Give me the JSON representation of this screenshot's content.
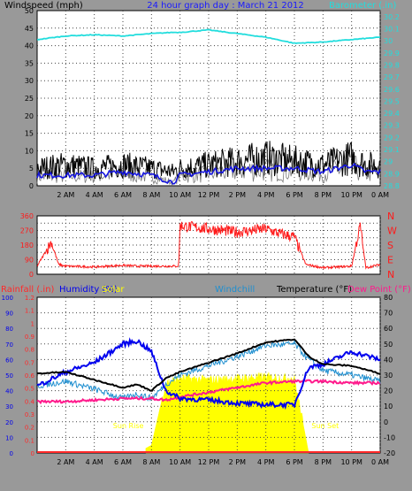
{
  "header": {
    "left_title": "Windspeed (mph)",
    "center_title": "24 hour graph day : March 21 2012",
    "right_title": "Barometer (.in)"
  },
  "colors": {
    "background": "#999999",
    "plot": "#ffffff",
    "grid": "#444444",
    "wind": "#000000",
    "gust_lite": "#7a7a7a",
    "wind_avg": "#1515e0",
    "barometer": "#22dddd",
    "direction": "#ff1a1a",
    "rainfall": "#ff2a2a",
    "humidity": "#0000ee",
    "solar": "#ffff00",
    "windchill": "#1f8fd0",
    "temperature": "#000000",
    "dewpoint": "#ff1a8c"
  },
  "x_ticks": [
    "2 AM",
    "4 AM",
    "6 AM",
    "8 AM",
    "10 AM",
    "12 PM",
    "2 PM",
    "4 PM",
    "6 PM",
    "8 PM",
    "10 PM",
    "0 AM"
  ],
  "chart_data": [
    {
      "type": "line",
      "title": "24 hour graph day : March 21 2012",
      "ylabel": "Windspeed (mph)",
      "y2label": "Barometer (.in)",
      "ylim": [
        0,
        50
      ],
      "y_ticks": [
        "0",
        "5",
        "10",
        "15",
        "20",
        "25",
        "30",
        "35",
        "40",
        "45",
        "50"
      ],
      "y2lim": [
        28.8,
        30.25
      ],
      "y2_ticks": [
        "28.8",
        "28.9",
        "29",
        "29.1",
        "29.2",
        "29.3",
        "29.4",
        "29.5",
        "29.6",
        "29.7",
        "29.8",
        "29.9",
        "30",
        "30.1",
        "30.2"
      ],
      "x_hours": [
        0,
        2,
        4,
        6,
        8,
        9.5,
        10,
        12,
        14,
        16,
        18,
        20,
        21,
        22,
        23,
        24
      ],
      "series": [
        {
          "name": "Windspeed",
          "axis": "left",
          "values": [
            5,
            6,
            5,
            6,
            5,
            4,
            5,
            6,
            7,
            8,
            7,
            6,
            7,
            8,
            6,
            6
          ]
        },
        {
          "name": "Wind avg",
          "axis": "left",
          "values": [
            3,
            3,
            3,
            4,
            3,
            1,
            3,
            4,
            5,
            5,
            5,
            4,
            5,
            6,
            4,
            4
          ]
        },
        {
          "name": "Barometer",
          "axis": "right",
          "values": [
            30.01,
            30.04,
            30.05,
            30.04,
            30.06,
            30.07,
            30.07,
            30.09,
            30.06,
            30.03,
            29.98,
            29.99,
            30.0,
            30.01,
            30.02,
            30.03
          ]
        }
      ]
    },
    {
      "type": "line",
      "ylabel_right": [
        "N",
        "W",
        "S",
        "E",
        "N"
      ],
      "ylim": [
        0,
        360
      ],
      "y_ticks": [
        "0",
        "45",
        "90",
        "135",
        "180",
        "225",
        "270",
        "315",
        "360"
      ],
      "x_hours": [
        0,
        1,
        1.5,
        2,
        4,
        6,
        7,
        9.9,
        10,
        12,
        14,
        16,
        17,
        18,
        18.8,
        20,
        22,
        22.6,
        23,
        24
      ],
      "series": [
        {
          "name": "Wind direction",
          "values": [
            50,
            200,
            60,
            50,
            45,
            55,
            50,
            50,
            300,
            280,
            260,
            280,
            250,
            230,
            60,
            40,
            50,
            300,
            40,
            60
          ]
        }
      ]
    },
    {
      "type": "line",
      "y_labels_top": [
        "Rainfall (.in)",
        "Humidity (%)",
        "Solar",
        "Windchill",
        "Temperature (°F)",
        "Dew Point (°F)"
      ],
      "rain_ticks": [
        "0",
        "0.1",
        "0.2",
        "0.3",
        "0.4",
        "0.5",
        "0.6",
        "0.7",
        "0.8",
        "0.9",
        "1",
        "1.1",
        "1.2"
      ],
      "humidity_ticks": [
        "0",
        "10",
        "20",
        "30",
        "40",
        "50",
        "60",
        "70",
        "80",
        "90",
        "100"
      ],
      "temp_ticks": [
        "-20",
        "-10",
        "0",
        "10",
        "20",
        "30",
        "40",
        "50",
        "60",
        "70",
        "80"
      ],
      "annotations": [
        "Sun Rise",
        "Sun Set"
      ],
      "x_hours": [
        0,
        2,
        4,
        6,
        7,
        8,
        9,
        10,
        12,
        14,
        16,
        18,
        19,
        20,
        22,
        24
      ],
      "series": [
        {
          "name": "Humidity",
          "unit": "%",
          "values": [
            43,
            52,
            58,
            70,
            72,
            65,
            40,
            35,
            34,
            32,
            31,
            31,
            55,
            57,
            65,
            60
          ]
        },
        {
          "name": "Temperature",
          "unit": "°F",
          "values": [
            31,
            32,
            27,
            22,
            24,
            20,
            28,
            32,
            38,
            44,
            51,
            53,
            42,
            37,
            36,
            31
          ]
        },
        {
          "name": "Windchill",
          "unit": "°F",
          "values": [
            23,
            26,
            21,
            15,
            18,
            15,
            24,
            30,
            36,
            42,
            49,
            50,
            40,
            33,
            30,
            26
          ]
        },
        {
          "name": "Dew Point",
          "unit": "°F",
          "values": [
            13,
            13,
            14,
            15,
            15,
            15,
            14,
            16,
            19,
            22,
            25,
            26,
            26,
            26,
            25,
            25
          ]
        },
        {
          "name": "Solar",
          "unit": "%",
          "values": [
            0,
            0,
            0,
            0,
            0,
            5,
            45,
            48,
            47,
            48,
            49,
            48,
            0,
            0,
            0,
            0
          ]
        },
        {
          "name": "Rainfall",
          "unit": "in",
          "values": [
            0,
            0,
            0,
            0,
            0,
            0,
            0,
            0,
            0,
            0,
            0,
            0,
            0,
            0,
            0,
            0
          ]
        }
      ]
    }
  ]
}
